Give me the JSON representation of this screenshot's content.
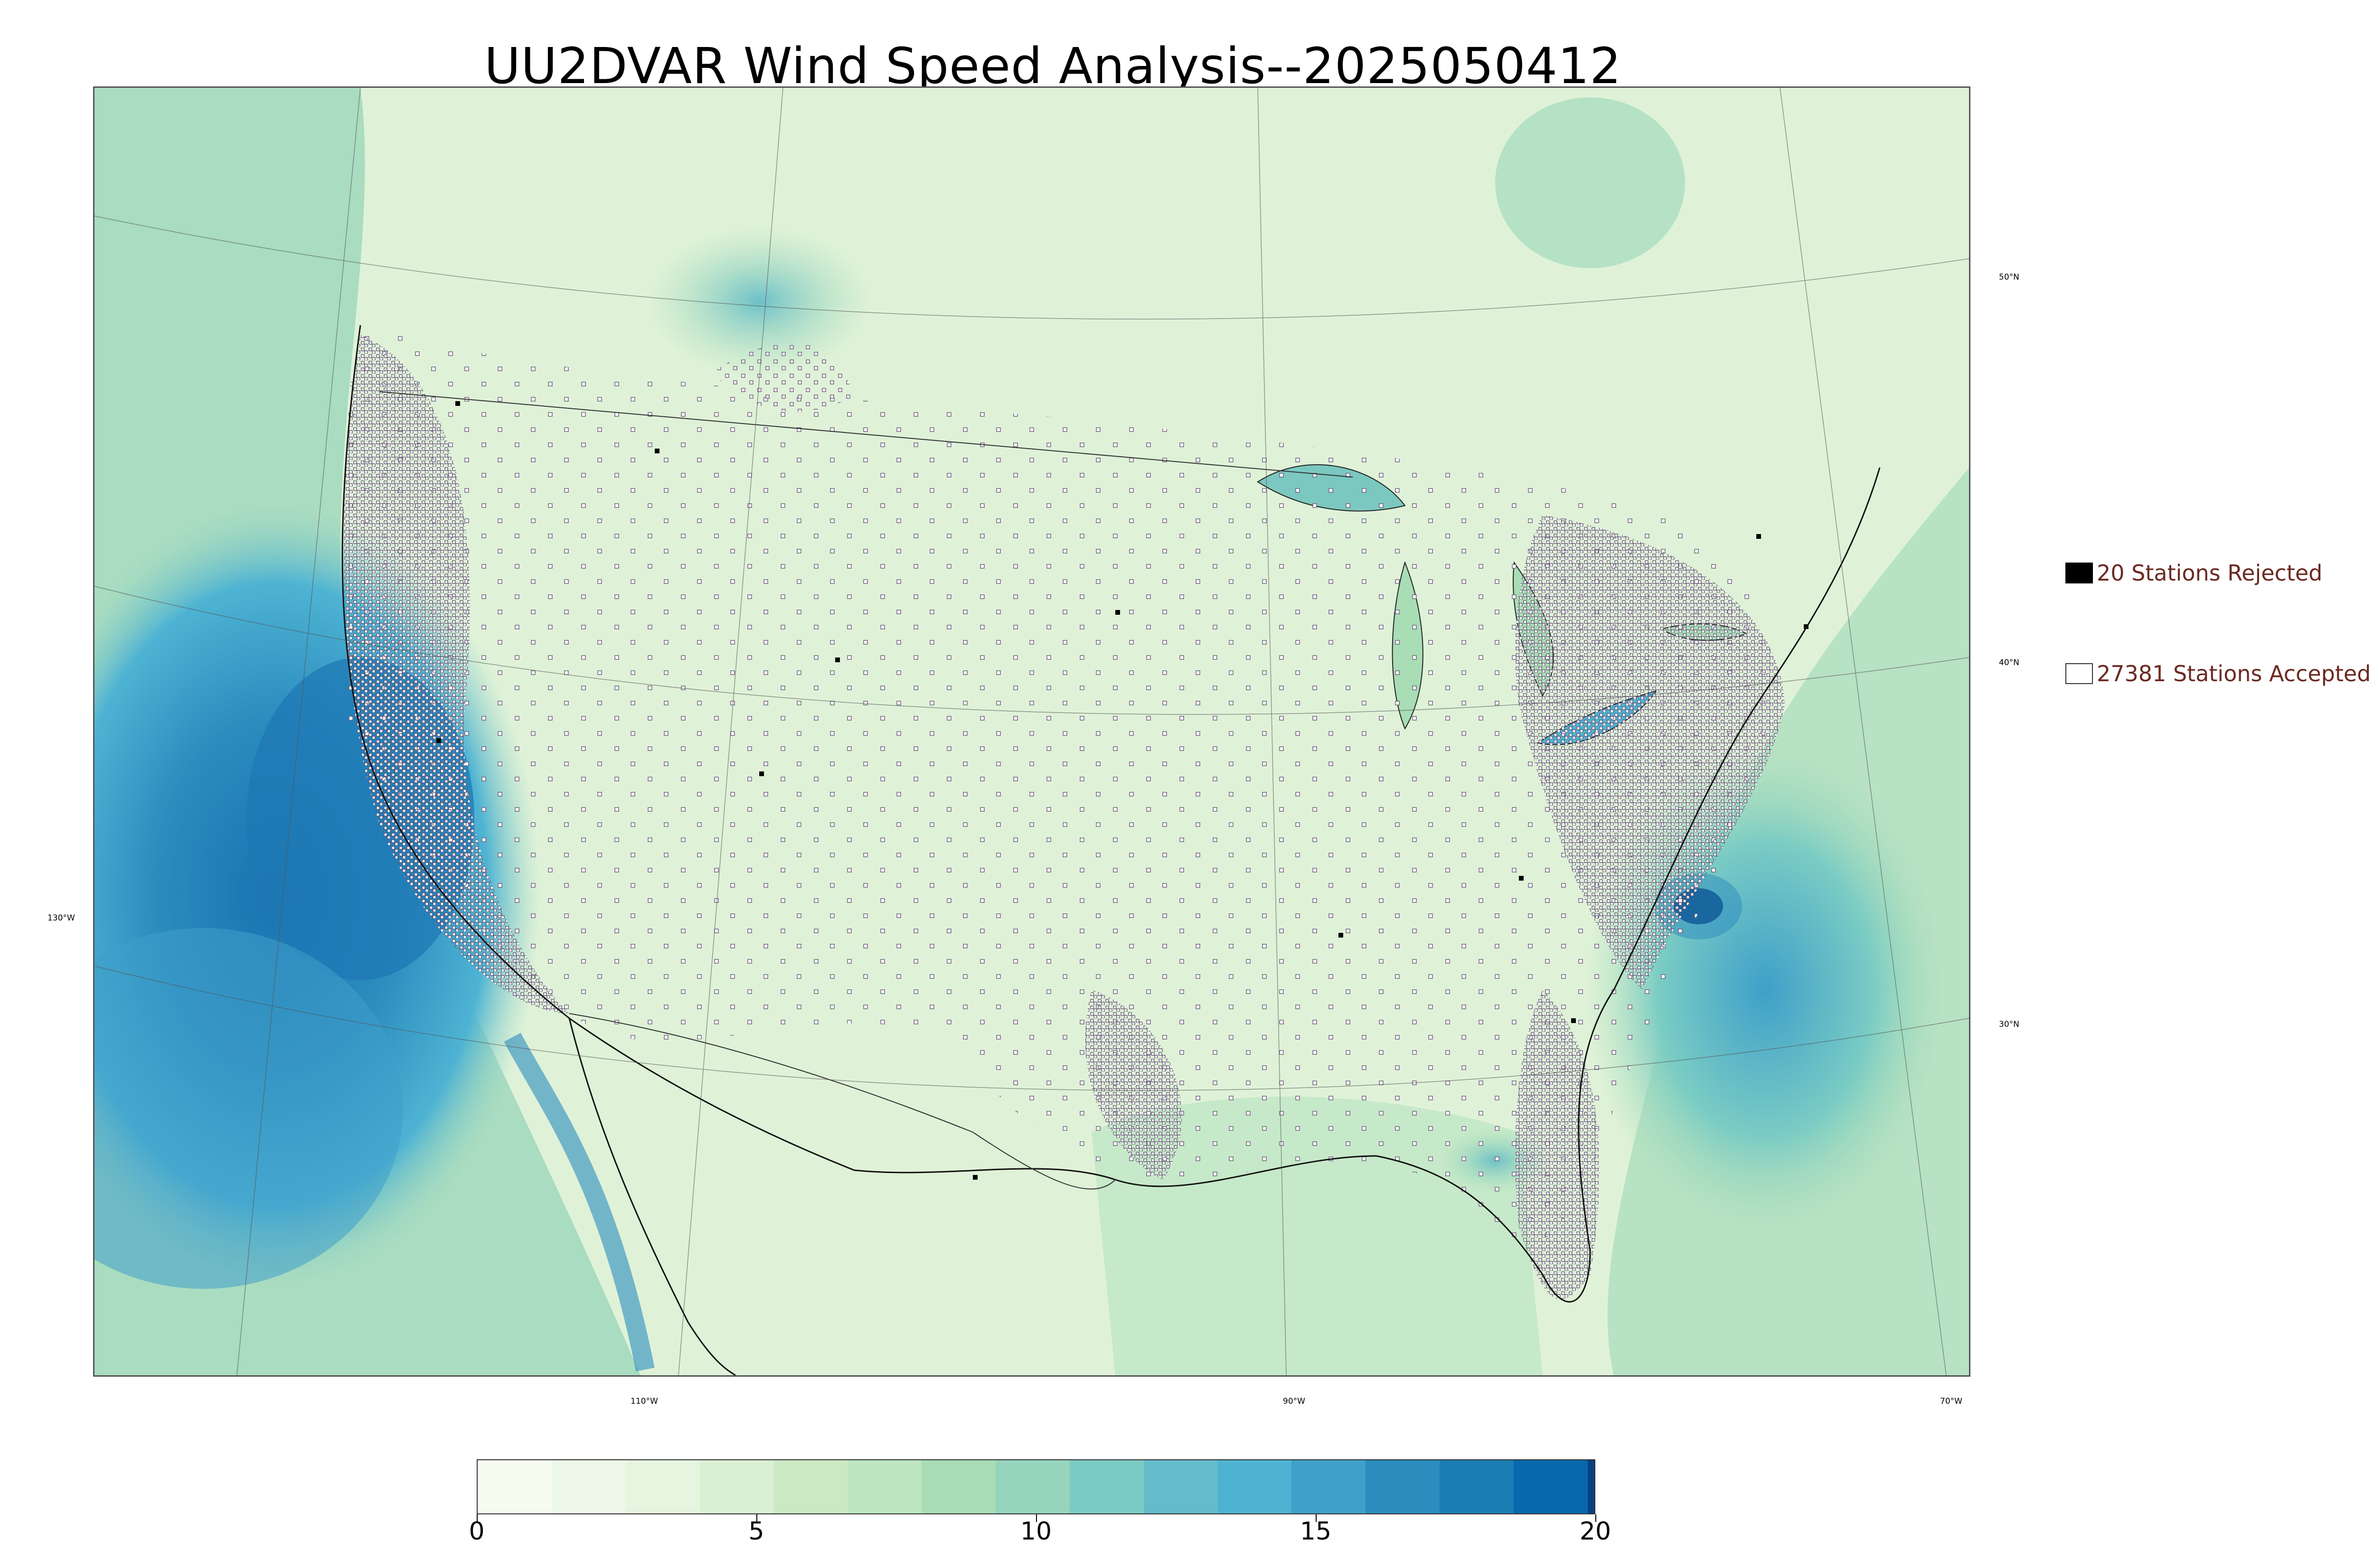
{
  "title": "UU2DVAR Wind Speed Analysis--2025050412",
  "map": {
    "projection": "lambert-conformal",
    "region": "CONUS",
    "parallel_labels": [
      "50°N",
      "40°N",
      "30°N"
    ],
    "meridian_labels": [
      "130°W",
      "110°W",
      "90°W",
      "70°W"
    ]
  },
  "legend": {
    "rejected": {
      "label": "20 Stations Rejected",
      "color": "#000000"
    },
    "accepted": {
      "label": "27381 Stations Accepted",
      "color": "#ffffff"
    },
    "text_color": "#6b2a22"
  },
  "colorbar": {
    "min": 0,
    "max": 20,
    "ticks": [
      "0",
      "5",
      "10",
      "15",
      "20"
    ],
    "colors": [
      "#f7fcf0",
      "#eef8e8",
      "#e6f5df",
      "#d9f0d3",
      "#cbeac4",
      "#bde5bf",
      "#a8ddb5",
      "#96d4bd",
      "#7bccc4",
      "#64bccb",
      "#4eb3d3",
      "#3fa0c9",
      "#2b8cbe",
      "#1a7db3",
      "#0868ac",
      "#084081"
    ]
  },
  "colors": {
    "land_low": "#e4f4dc",
    "ocean_mid": "#8fd1c2",
    "ocean_high": "#2b8cbe",
    "max_wind": "#084081"
  }
}
